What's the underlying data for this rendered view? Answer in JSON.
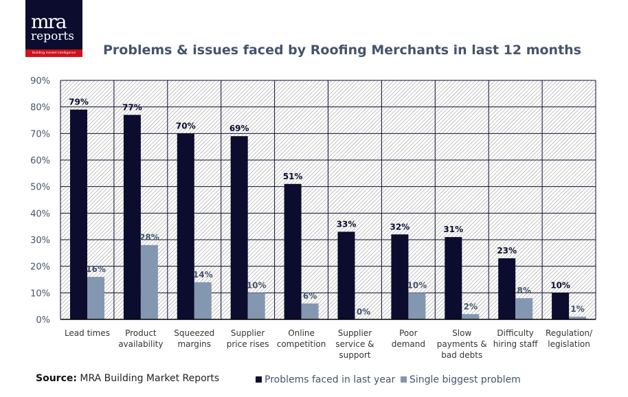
{
  "logo": {
    "line1": "mra",
    "line2": "reports",
    "tagline": "Building market intelligence"
  },
  "source": {
    "label": "Source:",
    "text": " MRA Building Market Reports"
  },
  "chart_data": {
    "type": "bar",
    "title": "Problems & issues faced by Roofing Merchants in last 12 months",
    "categories": [
      [
        "Lead times"
      ],
      [
        "Product",
        "availability"
      ],
      [
        "Squeezed",
        "margins"
      ],
      [
        "Supplier",
        "price rises"
      ],
      [
        "Online",
        "competition"
      ],
      [
        "Supplier",
        "service &",
        "support"
      ],
      [
        "Poor",
        "demand"
      ],
      [
        "Slow",
        "payments &",
        "bad debts"
      ],
      [
        "Difficulty",
        "hiring staff"
      ],
      [
        "Regulation/",
        "legislation"
      ]
    ],
    "series": [
      {
        "name": "Problems faced in last year",
        "color": "#0b0c2e",
        "values": [
          79,
          77,
          70,
          69,
          51,
          33,
          32,
          31,
          23,
          10
        ]
      },
      {
        "name": "Single biggest problem",
        "color": "#8497b0",
        "values": [
          16,
          28,
          14,
          10,
          6,
          0,
          10,
          2,
          8,
          1
        ]
      }
    ],
    "yticks": [
      "0%",
      "10%",
      "20%",
      "30%",
      "40%",
      "50%",
      "60%",
      "70%",
      "80%",
      "90%"
    ],
    "ylim": [
      0,
      90
    ],
    "grid": true,
    "legend": "bottom"
  }
}
